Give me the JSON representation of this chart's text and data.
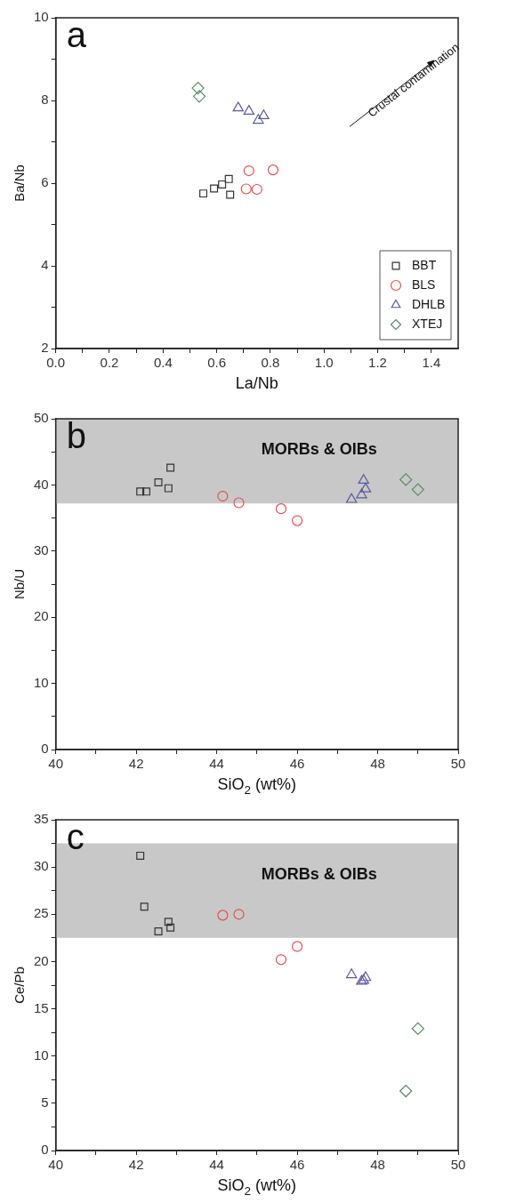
{
  "chart_data": [
    {
      "type": "scatter",
      "xlabel": "La/Nb",
      "ylabel": "Ba/Nb",
      "annotations": [
        "a",
        "Crustal contamination"
      ],
      "xlim": [
        0,
        1.5
      ],
      "xticks": [
        {
          "value": 0,
          "label": "0.0"
        },
        {
          "value": 0.1,
          "label": null
        },
        0.2,
        {
          "value": 0.3,
          "label": null
        },
        0.4,
        {
          "value": 0.5,
          "label": null
        },
        0.6,
        {
          "value": 0.7,
          "label": null
        },
        0.8,
        {
          "value": 0.9,
          "label": null
        },
        {
          "value": 1,
          "label": "1.0"
        },
        {
          "value": 1.1,
          "label": null
        },
        1.2,
        {
          "value": 1.3,
          "label": null
        },
        1.4
      ],
      "ylim": [
        2,
        10
      ],
      "yticks": [
        2,
        {
          "value": 3,
          "label": null
        },
        4,
        {
          "value": 5,
          "label": null
        },
        6,
        {
          "value": 7,
          "label": null
        },
        8,
        {
          "value": 9,
          "label": null
        },
        10
      ],
      "grid": false,
      "legend": "bottom right",
      "series": [
        {
          "name": "BBT",
          "color": "#333333",
          "marker": "square",
          "x": [
            0.55,
            0.59,
            0.62,
            0.645,
            0.65
          ],
          "values": [
            5.75,
            5.87,
            5.97,
            6.1,
            5.72
          ]
        },
        {
          "name": "BLS",
          "color": "#e05050",
          "marker": "circle",
          "x": [
            0.72,
            0.81,
            0.71,
            0.75
          ],
          "values": [
            6.3,
            6.32,
            5.86,
            5.85
          ]
        },
        {
          "name": "DHLB",
          "color": "#5a5aa0",
          "marker": "triangle",
          "x": [
            0.68,
            0.72,
            0.755,
            0.775
          ],
          "values": [
            7.82,
            7.74,
            7.52,
            7.63
          ]
        },
        {
          "name": "XTEJ",
          "color": "#5a8a6a",
          "marker": "diamond",
          "x": [
            0.53,
            0.535
          ],
          "values": [
            8.3,
            8.1
          ]
        }
      ]
    },
    {
      "type": "scatter",
      "xlabel": "SiO$_{2}$ (wt%)",
      "ylabel": "Nb/U",
      "annotations": [
        "b"
      ],
      "xlim": [
        40,
        50
      ],
      "xticks": [
        40,
        {
          "value": 41,
          "label": null
        },
        42,
        {
          "value": 43,
          "label": null
        },
        44,
        {
          "value": 45,
          "label": null
        },
        46,
        {
          "value": 47,
          "label": null
        },
        48,
        {
          "value": 49,
          "label": null
        },
        50
      ],
      "ylim": [
        0,
        50
      ],
      "yticks": [
        0,
        {
          "value": 5,
          "label": null
        },
        10,
        {
          "value": 15,
          "label": null
        },
        20,
        {
          "value": 25,
          "label": null
        },
        30,
        {
          "value": 35,
          "label": null
        },
        40,
        {
          "value": 45,
          "label": null
        },
        50
      ],
      "grid": false,
      "bands": [
        {
          "axis": "y",
          "from": 37.2,
          "to": 50,
          "label": "MORBs & OIBs",
          "color": "#c8c8c8"
        }
      ],
      "series": [
        {
          "color": "#333333",
          "marker": "square",
          "x": [
            42.1,
            42.25,
            42.55,
            42.8,
            42.85
          ],
          "values": [
            39,
            39,
            40.4,
            39.5,
            42.6
          ]
        },
        {
          "color": "#e05050",
          "marker": "circle",
          "x": [
            44.15,
            44.55,
            45.6,
            46
          ],
          "values": [
            38.3,
            37.3,
            36.4,
            34.6
          ]
        },
        {
          "color": "#5a5aa0",
          "marker": "triangle",
          "x": [
            47.35,
            47.6,
            47.65,
            47.7
          ],
          "values": [
            37.8,
            38.5,
            40.7,
            39.4
          ]
        },
        {
          "color": "#5a8a6a",
          "marker": "diamond",
          "x": [
            48.7,
            49
          ],
          "values": [
            40.8,
            39.3
          ]
        }
      ]
    },
    {
      "type": "scatter",
      "xlabel": "SiO$_{2}$ (wt%)",
      "ylabel": "Ce/Pb",
      "annotations": [
        "c"
      ],
      "xlim": [
        40,
        50
      ],
      "xticks": [
        40,
        {
          "value": 41,
          "label": null
        },
        42,
        {
          "value": 43,
          "label": null
        },
        44,
        {
          "value": 45,
          "label": null
        },
        46,
        {
          "value": 47,
          "label": null
        },
        48,
        {
          "value": 49,
          "label": null
        },
        50
      ],
      "ylim": [
        0,
        35
      ],
      "yticks": [
        0,
        {
          "value": 2.5,
          "label": null
        },
        5,
        {
          "value": 7.5,
          "label": null
        },
        10,
        {
          "value": 12.5,
          "label": null
        },
        15,
        {
          "value": 17.5,
          "label": null
        },
        20,
        {
          "value": 22.5,
          "label": null
        },
        25,
        {
          "value": 27.5,
          "label": null
        },
        30,
        {
          "value": 32.5,
          "label": null
        },
        35
      ],
      "grid": false,
      "bands": [
        {
          "axis": "y",
          "from": 22.5,
          "to": 32.5,
          "label": "MORBs & OIBs",
          "color": "#c8c8c8"
        }
      ],
      "series": [
        {
          "color": "#333333",
          "marker": "square",
          "x": [
            42.1,
            42.2,
            42.55,
            42.8,
            42.85
          ],
          "values": [
            31.2,
            25.8,
            23.2,
            24.2,
            23.6
          ]
        },
        {
          "color": "#e05050",
          "marker": "circle",
          "x": [
            44.15,
            44.55,
            45.6,
            46
          ],
          "values": [
            24.9,
            25,
            20.2,
            21.6
          ]
        },
        {
          "color": "#5a5aa0",
          "marker": "triangle",
          "x": [
            47.35,
            47.6,
            47.65,
            47.7
          ],
          "values": [
            18.6,
            17.9,
            18,
            18.3
          ]
        },
        {
          "color": "#5a8a6a",
          "marker": "diamond",
          "x": [
            48.7,
            49
          ],
          "values": [
            6.3,
            12.9
          ]
        }
      ]
    }
  ]
}
